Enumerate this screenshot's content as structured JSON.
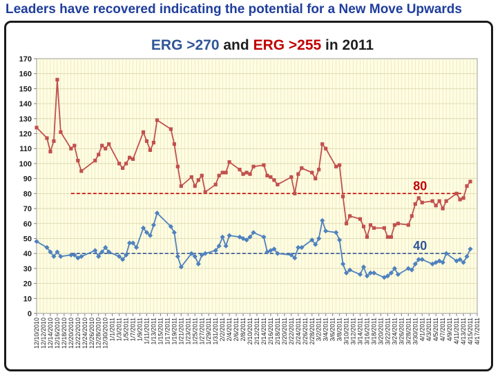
{
  "header": {
    "title": "Leaders have recovered indicating the potential for a New Move Upwards"
  },
  "chart_data": {
    "type": "line",
    "title_parts": [
      {
        "text": "ERG >270",
        "color": "#2f5597"
      },
      {
        "text": " and ",
        "color": "#1f1f1f"
      },
      {
        "text": "ERG >255",
        "color": "#c00000"
      },
      {
        "text": " in 2011",
        "color": "#1f1f1f"
      }
    ],
    "xlabel": "",
    "ylabel": "",
    "ylim": [
      0,
      170
    ],
    "ytick_step": 10,
    "grid": true,
    "x_tick_labels": [
      "12/10/2010",
      "12/12/2010",
      "12/14/2010",
      "12/16/2010",
      "12/18/2010",
      "12/20/2010",
      "12/22/2010",
      "12/24/2010",
      "12/26/2010",
      "12/28/2010",
      "12/30/2010",
      "1/1/2011",
      "1/3/2011",
      "1/5/2011",
      "1/7/2011",
      "1/9/2011",
      "1/11/2011",
      "1/13/2011",
      "1/15/2011",
      "1/17/2011",
      "1/19/2011",
      "1/21/2011",
      "1/23/2011",
      "1/25/2011",
      "1/27/2011",
      "1/29/2011",
      "1/31/2011",
      "2/2/2011",
      "2/4/2011",
      "2/6/2011",
      "2/8/2011",
      "2/10/2011",
      "2/12/2011",
      "2/14/2011",
      "2/16/2011",
      "2/18/2011",
      "2/20/2011",
      "2/22/2011",
      "2/24/2011",
      "2/26/2011",
      "2/28/2011",
      "3/2/2011",
      "3/4/2011",
      "3/6/2011",
      "3/8/2011",
      "3/10/2011",
      "3/12/2011",
      "3/14/2011",
      "3/16/2011",
      "3/18/2011",
      "3/20/2011",
      "3/22/2011",
      "3/24/2011",
      "3/26/2011",
      "3/28/2011",
      "3/30/2011",
      "4/1/2011",
      "4/3/2011",
      "4/5/2011",
      "4/7/2011",
      "4/9/2011",
      "4/11/2011",
      "4/13/2011",
      "4/15/2011",
      "4/17/2011"
    ],
    "x_start": "2010-12-10",
    "x_end": "2011-04-17",
    "series": [
      {
        "name": "ERG >255",
        "color": "#c0504d",
        "marker": "square",
        "points": [
          [
            "2010-12-10",
            124
          ],
          [
            "2010-12-13",
            117
          ],
          [
            "2010-12-14",
            108
          ],
          [
            "2010-12-15",
            115
          ],
          [
            "2010-12-16",
            156
          ],
          [
            "2010-12-17",
            121
          ],
          [
            "2010-12-20",
            110
          ],
          [
            "2010-12-21",
            112
          ],
          [
            "2010-12-22",
            102
          ],
          [
            "2010-12-23",
            95
          ],
          [
            "2010-12-27",
            102
          ],
          [
            "2010-12-28",
            106
          ],
          [
            "2010-12-29",
            112
          ],
          [
            "2010-12-30",
            110
          ],
          [
            "2010-12-31",
            113
          ],
          [
            "2011-01-03",
            100
          ],
          [
            "2011-01-04",
            97
          ],
          [
            "2011-01-05",
            100
          ],
          [
            "2011-01-06",
            104
          ],
          [
            "2011-01-07",
            103
          ],
          [
            "2011-01-10",
            121
          ],
          [
            "2011-01-11",
            115
          ],
          [
            "2011-01-12",
            109
          ],
          [
            "2011-01-13",
            114
          ],
          [
            "2011-01-14",
            129
          ],
          [
            "2011-01-18",
            123
          ],
          [
            "2011-01-19",
            113
          ],
          [
            "2011-01-20",
            98
          ],
          [
            "2011-01-21",
            85
          ],
          [
            "2011-01-24",
            91
          ],
          [
            "2011-01-25",
            85
          ],
          [
            "2011-01-26",
            89
          ],
          [
            "2011-01-27",
            92
          ],
          [
            "2011-01-28",
            81
          ],
          [
            "2011-01-31",
            86
          ],
          [
            "2011-02-01",
            92
          ],
          [
            "2011-02-02",
            94
          ],
          [
            "2011-02-03",
            94
          ],
          [
            "2011-02-04",
            101
          ],
          [
            "2011-02-07",
            96
          ],
          [
            "2011-02-08",
            93
          ],
          [
            "2011-02-09",
            94
          ],
          [
            "2011-02-10",
            93
          ],
          [
            "2011-02-11",
            98
          ],
          [
            "2011-02-14",
            99
          ],
          [
            "2011-02-15",
            92
          ],
          [
            "2011-02-16",
            91
          ],
          [
            "2011-02-17",
            89
          ],
          [
            "2011-02-18",
            86
          ],
          [
            "2011-02-22",
            91
          ],
          [
            "2011-02-23",
            80
          ],
          [
            "2011-02-24",
            93
          ],
          [
            "2011-02-25",
            97
          ],
          [
            "2011-02-28",
            94
          ],
          [
            "2011-03-01",
            90
          ],
          [
            "2011-03-02",
            96
          ],
          [
            "2011-03-03",
            113
          ],
          [
            "2011-03-04",
            110
          ],
          [
            "2011-03-07",
            98
          ],
          [
            "2011-03-08",
            99
          ],
          [
            "2011-03-09",
            78
          ],
          [
            "2011-03-10",
            60
          ],
          [
            "2011-03-11",
            65
          ],
          [
            "2011-03-14",
            63
          ],
          [
            "2011-03-15",
            58
          ],
          [
            "2011-03-16",
            51
          ],
          [
            "2011-03-17",
            59
          ],
          [
            "2011-03-18",
            57
          ],
          [
            "2011-03-21",
            57
          ],
          [
            "2011-03-22",
            51
          ],
          [
            "2011-03-23",
            51
          ],
          [
            "2011-03-24",
            59
          ],
          [
            "2011-03-25",
            60
          ],
          [
            "2011-03-28",
            59
          ],
          [
            "2011-03-29",
            65
          ],
          [
            "2011-03-30",
            73
          ],
          [
            "2011-03-31",
            77
          ],
          [
            "2011-04-01",
            74
          ],
          [
            "2011-04-04",
            75
          ],
          [
            "2011-04-05",
            72
          ],
          [
            "2011-04-06",
            75
          ],
          [
            "2011-04-07",
            70
          ],
          [
            "2011-04-08",
            75
          ],
          [
            "2011-04-11",
            80
          ],
          [
            "2011-04-12",
            76
          ],
          [
            "2011-04-13",
            77
          ],
          [
            "2011-04-14",
            85
          ],
          [
            "2011-04-15",
            88
          ]
        ]
      },
      {
        "name": "ERG >270",
        "color": "#4f81bd",
        "marker": "diamond",
        "points": [
          [
            "2010-12-10",
            48
          ],
          [
            "2010-12-13",
            44
          ],
          [
            "2010-12-14",
            41
          ],
          [
            "2010-12-15",
            38
          ],
          [
            "2010-12-16",
            41
          ],
          [
            "2010-12-17",
            38
          ],
          [
            "2010-12-20",
            39
          ],
          [
            "2010-12-21",
            39
          ],
          [
            "2010-12-22",
            37
          ],
          [
            "2010-12-23",
            38
          ],
          [
            "2010-12-27",
            42
          ],
          [
            "2010-12-28",
            38
          ],
          [
            "2010-12-29",
            41
          ],
          [
            "2010-12-30",
            44
          ],
          [
            "2010-12-31",
            41
          ],
          [
            "2011-01-03",
            38
          ],
          [
            "2011-01-04",
            36
          ],
          [
            "2011-01-05",
            39
          ],
          [
            "2011-01-06",
            47
          ],
          [
            "2011-01-07",
            47
          ],
          [
            "2011-01-08",
            44
          ],
          [
            "2011-01-10",
            57
          ],
          [
            "2011-01-11",
            54
          ],
          [
            "2011-01-12",
            52
          ],
          [
            "2011-01-13",
            59
          ],
          [
            "2011-01-14",
            67
          ],
          [
            "2011-01-18",
            58
          ],
          [
            "2011-01-19",
            54
          ],
          [
            "2011-01-20",
            38
          ],
          [
            "2011-01-21",
            31
          ],
          [
            "2011-01-24",
            40
          ],
          [
            "2011-01-25",
            38
          ],
          [
            "2011-01-26",
            33
          ],
          [
            "2011-01-27",
            39
          ],
          [
            "2011-01-28",
            40
          ],
          [
            "2011-01-31",
            42
          ],
          [
            "2011-02-01",
            45
          ],
          [
            "2011-02-02",
            51
          ],
          [
            "2011-02-03",
            45
          ],
          [
            "2011-02-04",
            52
          ],
          [
            "2011-02-07",
            51
          ],
          [
            "2011-02-08",
            50
          ],
          [
            "2011-02-09",
            49
          ],
          [
            "2011-02-10",
            51
          ],
          [
            "2011-02-11",
            54
          ],
          [
            "2011-02-14",
            51
          ],
          [
            "2011-02-15",
            41
          ],
          [
            "2011-02-16",
            42
          ],
          [
            "2011-02-17",
            43
          ],
          [
            "2011-02-18",
            40
          ],
          [
            "2011-02-22",
            39
          ],
          [
            "2011-02-23",
            37
          ],
          [
            "2011-02-24",
            44
          ],
          [
            "2011-02-25",
            44
          ],
          [
            "2011-02-28",
            49
          ],
          [
            "2011-03-01",
            46
          ],
          [
            "2011-03-02",
            50
          ],
          [
            "2011-03-03",
            62
          ],
          [
            "2011-03-04",
            55
          ],
          [
            "2011-03-07",
            54
          ],
          [
            "2011-03-08",
            49
          ],
          [
            "2011-03-09",
            33
          ],
          [
            "2011-03-10",
            27
          ],
          [
            "2011-03-11",
            29
          ],
          [
            "2011-03-14",
            26
          ],
          [
            "2011-03-15",
            31
          ],
          [
            "2011-03-16",
            25
          ],
          [
            "2011-03-17",
            27
          ],
          [
            "2011-03-18",
            27
          ],
          [
            "2011-03-21",
            24
          ],
          [
            "2011-03-22",
            25
          ],
          [
            "2011-03-23",
            27
          ],
          [
            "2011-03-24",
            30
          ],
          [
            "2011-03-25",
            26
          ],
          [
            "2011-03-28",
            30
          ],
          [
            "2011-03-29",
            29
          ],
          [
            "2011-03-30",
            33
          ],
          [
            "2011-03-31",
            36
          ],
          [
            "2011-04-01",
            36
          ],
          [
            "2011-04-04",
            33
          ],
          [
            "2011-04-05",
            34
          ],
          [
            "2011-04-06",
            35
          ],
          [
            "2011-04-07",
            34
          ],
          [
            "2011-04-08",
            40
          ],
          [
            "2011-04-11",
            35
          ],
          [
            "2011-04-12",
            36
          ],
          [
            "2011-04-13",
            34
          ],
          [
            "2011-04-14",
            38
          ],
          [
            "2011-04-15",
            43
          ]
        ]
      }
    ],
    "reference_lines": [
      {
        "value": 80,
        "label": "80",
        "color": "#c00000",
        "from": "2010-12-20",
        "to": "2011-04-13"
      },
      {
        "value": 40,
        "label": "40",
        "color": "#2f5597",
        "from": "2010-12-20",
        "to": "2011-04-13"
      }
    ]
  }
}
